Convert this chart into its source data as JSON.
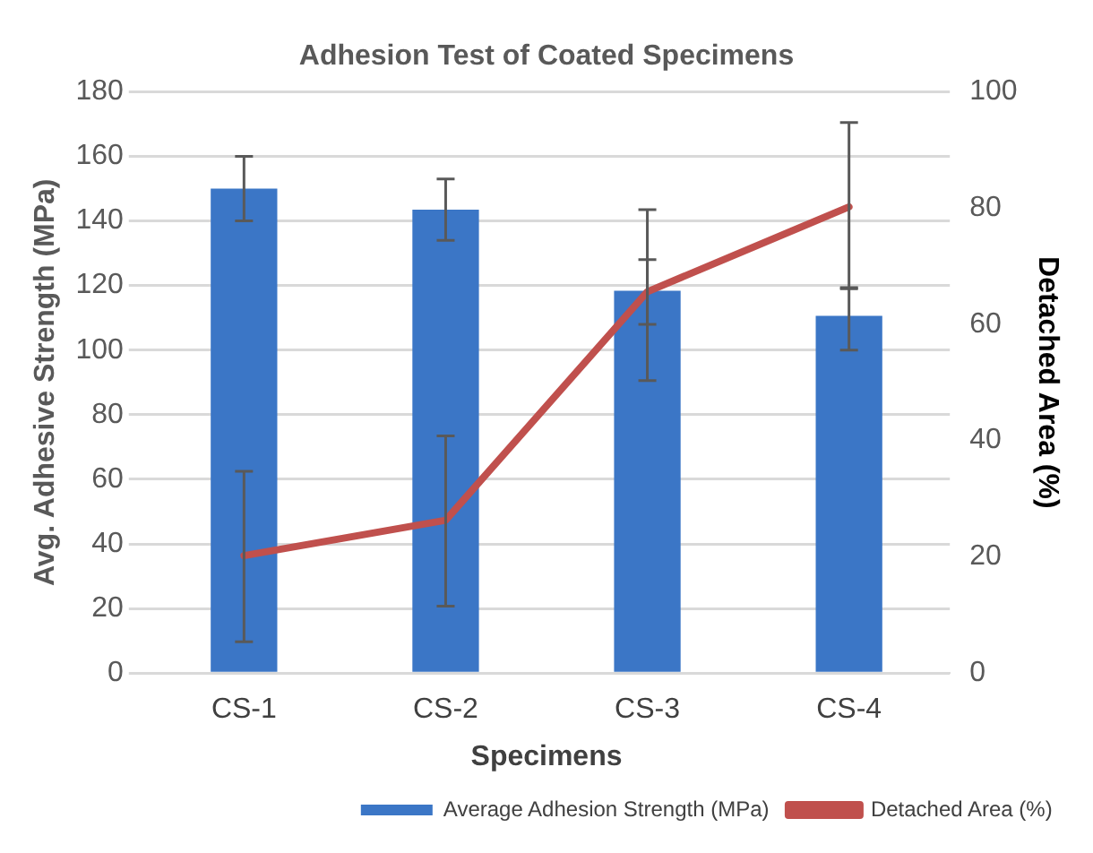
{
  "chart_data": {
    "type": "bar",
    "title": "Adhesion Test of Coated Specimens",
    "xlabel": "Specimens",
    "ylabel": "Avg. Adhesive Strength (MPa)",
    "y2label": "Detached Area (%)",
    "categories": [
      "CS-1",
      "CS-2",
      "CS-3",
      "CS-4"
    ],
    "series": [
      {
        "name": "Average Adhesion Strength (MPa)",
        "color": "#3b76c6",
        "values": [
          150,
          143.5,
          118.4,
          110.6
        ],
        "errors": [
          [
            140,
            160
          ],
          [
            134,
            153
          ],
          [
            108,
            128
          ],
          [
            100,
            119
          ]
        ]
      },
      {
        "name": "Detached Area (%)",
        "type": "line",
        "axis": "y2",
        "color": "#c0504d",
        "values": [
          20.2,
          26.3,
          65.6,
          80.2
        ],
        "errors": [
          [
            5.4,
            34.7
          ],
          [
            11.5,
            40.8
          ],
          [
            50.3,
            79.7
          ],
          [
            66.3,
            94.7
          ]
        ]
      }
    ],
    "ylim": [
      0,
      180
    ],
    "yticks": [
      0,
      20,
      40,
      60,
      80,
      100,
      120,
      140,
      160,
      180
    ],
    "y2lim": [
      0,
      100
    ],
    "y2ticks": [
      0,
      20,
      40,
      60,
      80,
      100
    ],
    "grid": "y",
    "legend": "bottom right",
    "marker": "none",
    "line_style": "solid"
  }
}
